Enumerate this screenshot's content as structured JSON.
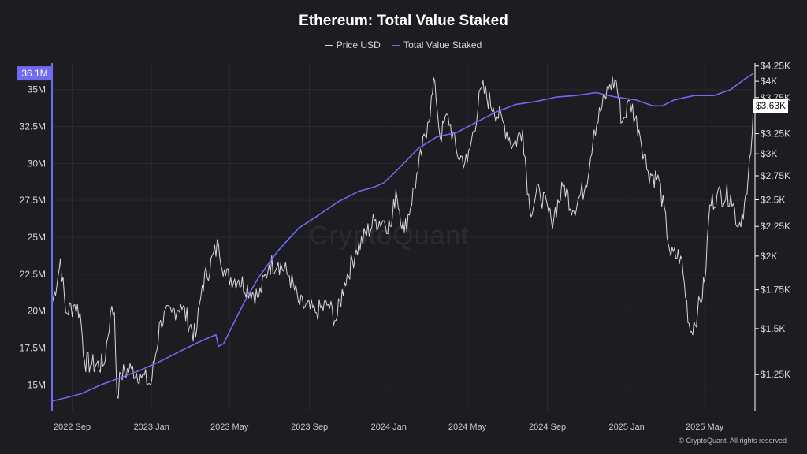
{
  "chart_data": {
    "type": "line",
    "title": "Ethereum: Total Value Staked",
    "legend_placement": "top-center",
    "grid": true,
    "x_range": [
      "2022-08-01",
      "2025-07-15"
    ],
    "x_ticks": [
      {
        "date": "2022-09-01",
        "label": "2022 Sep"
      },
      {
        "date": "2023-01-01",
        "label": "2023 Jan"
      },
      {
        "date": "2023-05-01",
        "label": "2023 May"
      },
      {
        "date": "2023-09-01",
        "label": "2023 Sep"
      },
      {
        "date": "2024-01-01",
        "label": "2024 Jan"
      },
      {
        "date": "2024-05-01",
        "label": "2024 May"
      },
      {
        "date": "2024-09-01",
        "label": "2024 Sep"
      },
      {
        "date": "2025-01-01",
        "label": "2025 Jan"
      },
      {
        "date": "2025-05-01",
        "label": "2025 May"
      }
    ],
    "y_left": {
      "ylim": [
        13.2,
        36.8
      ],
      "ticks": [
        {
          "value": 15,
          "label": "15M"
        },
        {
          "value": 17.5,
          "label": "17.5M"
        },
        {
          "value": 20,
          "label": "20M"
        },
        {
          "value": 22.5,
          "label": "22.5M"
        },
        {
          "value": 25,
          "label": "25M"
        },
        {
          "value": 27.5,
          "label": "27.5M"
        },
        {
          "value": 30,
          "label": "30M"
        },
        {
          "value": 32.5,
          "label": "32.5M"
        },
        {
          "value": 35,
          "label": "35M"
        }
      ],
      "last_value_label": "36.1M",
      "last_value": 36.1
    },
    "y_right": {
      "scale": "log",
      "ylim": [
        1080,
        4300
      ],
      "ticks": [
        {
          "value": 1250,
          "label": "$1.25K"
        },
        {
          "value": 1500,
          "label": "$1.5K"
        },
        {
          "value": 1750,
          "label": "$1.75K"
        },
        {
          "value": 2000,
          "label": "$2K"
        },
        {
          "value": 2250,
          "label": "$2.25K"
        },
        {
          "value": 2500,
          "label": "$2.5K"
        },
        {
          "value": 2750,
          "label": "$2.75K"
        },
        {
          "value": 3000,
          "label": "$3K"
        },
        {
          "value": 3250,
          "label": "$3.25K"
        },
        {
          "value": 3750,
          "label": "$3.75K"
        },
        {
          "value": 4000,
          "label": "$4K"
        },
        {
          "value": 4250,
          "label": "$4.25K"
        }
      ],
      "last_value_label": "$3.63K",
      "last_value": 3630
    },
    "series": [
      {
        "name": "Total Value Staked",
        "axis": "left",
        "color": "#6f6af2",
        "unit": "M ETH",
        "points": [
          [
            "2022-08-01",
            13.9
          ],
          [
            "2022-08-20",
            14.1
          ],
          [
            "2022-09-15",
            14.4
          ],
          [
            "2022-10-15",
            15.0
          ],
          [
            "2022-11-15",
            15.5
          ],
          [
            "2022-12-15",
            16.0
          ],
          [
            "2023-01-15",
            16.6
          ],
          [
            "2023-02-15",
            17.3
          ],
          [
            "2023-03-15",
            17.9
          ],
          [
            "2023-04-10",
            18.4
          ],
          [
            "2023-04-14",
            17.6
          ],
          [
            "2023-04-22",
            17.8
          ],
          [
            "2023-05-10",
            19.4
          ],
          [
            "2023-05-25",
            20.7
          ],
          [
            "2023-06-15",
            22.3
          ],
          [
            "2023-07-15",
            24.1
          ],
          [
            "2023-08-15",
            25.6
          ],
          [
            "2023-09-15",
            26.5
          ],
          [
            "2023-10-15",
            27.4
          ],
          [
            "2023-11-15",
            28.1
          ],
          [
            "2023-12-10",
            28.4
          ],
          [
            "2023-12-25",
            28.7
          ],
          [
            "2024-01-15",
            29.6
          ],
          [
            "2024-02-15",
            31.0
          ],
          [
            "2024-03-15",
            31.8
          ],
          [
            "2024-04-15",
            32.1
          ],
          [
            "2024-05-15",
            32.8
          ],
          [
            "2024-06-15",
            33.5
          ],
          [
            "2024-07-15",
            34.0
          ],
          [
            "2024-08-15",
            34.2
          ],
          [
            "2024-09-15",
            34.5
          ],
          [
            "2024-10-15",
            34.6
          ],
          [
            "2024-11-15",
            34.8
          ],
          [
            "2024-12-15",
            34.5
          ],
          [
            "2025-01-15",
            34.3
          ],
          [
            "2025-02-10",
            33.9
          ],
          [
            "2025-02-25",
            33.9
          ],
          [
            "2025-03-15",
            34.3
          ],
          [
            "2025-04-15",
            34.6
          ],
          [
            "2025-05-15",
            34.6
          ],
          [
            "2025-06-10",
            35.0
          ],
          [
            "2025-07-01",
            35.7
          ],
          [
            "2025-07-15",
            36.1
          ]
        ]
      },
      {
        "name": "Price USD",
        "axis": "right",
        "color": "#d8d8dc",
        "unit": "USD",
        "points": [
          [
            "2022-08-01",
            1650
          ],
          [
            "2022-08-12",
            1900
          ],
          [
            "2022-08-14",
            1980
          ],
          [
            "2022-08-22",
            1600
          ],
          [
            "2022-09-05",
            1650
          ],
          [
            "2022-09-13",
            1600
          ],
          [
            "2022-09-20",
            1320
          ],
          [
            "2022-10-01",
            1300
          ],
          [
            "2022-10-20",
            1300
          ],
          [
            "2022-10-30",
            1600
          ],
          [
            "2022-11-05",
            1600
          ],
          [
            "2022-11-09",
            1150
          ],
          [
            "2022-11-15",
            1250
          ],
          [
            "2022-12-01",
            1280
          ],
          [
            "2022-12-15",
            1250
          ],
          [
            "2022-12-31",
            1200
          ],
          [
            "2023-01-15",
            1550
          ],
          [
            "2023-02-01",
            1600
          ],
          [
            "2023-02-15",
            1650
          ],
          [
            "2023-03-10",
            1450
          ],
          [
            "2023-03-20",
            1780
          ],
          [
            "2023-04-14",
            2100
          ],
          [
            "2023-04-25",
            1850
          ],
          [
            "2023-05-15",
            1820
          ],
          [
            "2023-06-15",
            1700
          ],
          [
            "2023-07-01",
            1930
          ],
          [
            "2023-07-15",
            1950
          ],
          [
            "2023-08-01",
            1850
          ],
          [
            "2023-08-17",
            1650
          ],
          [
            "2023-09-10",
            1600
          ],
          [
            "2023-09-30",
            1650
          ],
          [
            "2023-10-12",
            1550
          ],
          [
            "2023-10-25",
            1800
          ],
          [
            "2023-11-12",
            2050
          ],
          [
            "2023-12-10",
            2300
          ],
          [
            "2023-12-25",
            2300
          ],
          [
            "2024-01-05",
            2250
          ],
          [
            "2024-01-12",
            2600
          ],
          [
            "2024-01-25",
            2200
          ],
          [
            "2024-02-15",
            2800
          ],
          [
            "2024-03-01",
            3400
          ],
          [
            "2024-03-12",
            4000
          ],
          [
            "2024-03-20",
            3200
          ],
          [
            "2024-04-01",
            3500
          ],
          [
            "2024-04-15",
            3000
          ],
          [
            "2024-05-01",
            2900
          ],
          [
            "2024-05-23",
            3900
          ],
          [
            "2024-06-10",
            3600
          ],
          [
            "2024-06-25",
            3400
          ],
          [
            "2024-07-10",
            3100
          ],
          [
            "2024-07-25",
            3300
          ],
          [
            "2024-08-05",
            2400
          ],
          [
            "2024-08-20",
            2600
          ],
          [
            "2024-09-07",
            2300
          ],
          [
            "2024-09-27",
            2650
          ],
          [
            "2024-10-10",
            2400
          ],
          [
            "2024-10-30",
            2650
          ],
          [
            "2024-11-12",
            3300
          ],
          [
            "2024-12-06",
            3950
          ],
          [
            "2024-12-16",
            4000
          ],
          [
            "2024-12-25",
            3400
          ],
          [
            "2025-01-06",
            3700
          ],
          [
            "2025-01-20",
            3300
          ],
          [
            "2025-02-03",
            2800
          ],
          [
            "2025-02-20",
            2700
          ],
          [
            "2025-03-10",
            2000
          ],
          [
            "2025-03-25",
            2000
          ],
          [
            "2025-04-09",
            1480
          ],
          [
            "2025-04-20",
            1600
          ],
          [
            "2025-05-01",
            1800
          ],
          [
            "2025-05-09",
            2450
          ],
          [
            "2025-05-20",
            2550
          ],
          [
            "2025-06-10",
            2550
          ],
          [
            "2025-06-22",
            2250
          ],
          [
            "2025-07-05",
            2550
          ],
          [
            "2025-07-11",
            3000
          ],
          [
            "2025-07-15",
            3630
          ]
        ]
      }
    ]
  },
  "legend": {
    "price_label": "Price USD",
    "staked_label": "Total Value Staked"
  },
  "watermark": "CryptoQuant",
  "footer": {
    "copyright": "© CryptoQuant. All rights reserved"
  }
}
